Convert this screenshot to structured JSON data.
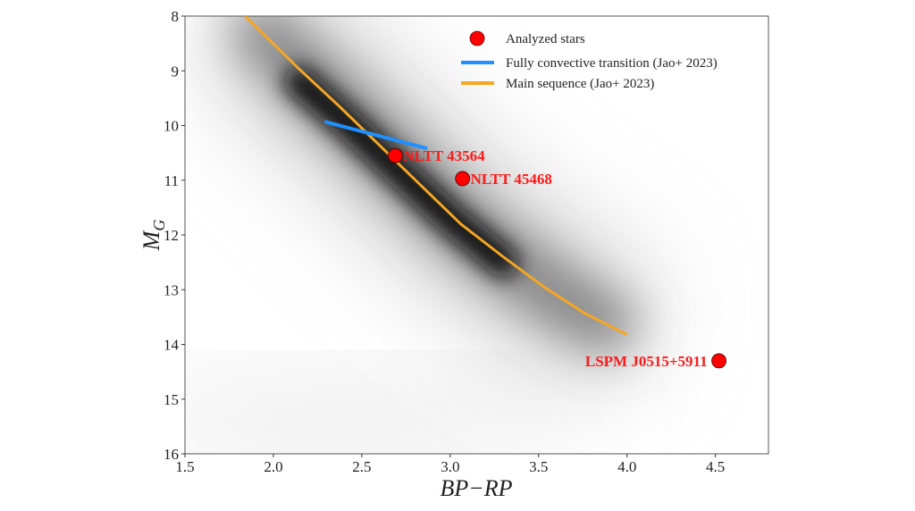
{
  "chart_data": {
    "type": "scatter",
    "title": "",
    "xlabel": "BP−RP",
    "ylabel": "M_G",
    "ylabel_main": "M",
    "ylabel_sub": "G",
    "xlim": [
      1.5,
      4.8
    ],
    "ylim": [
      16,
      8
    ],
    "y_inverted": true,
    "grid": false,
    "legend_placement": "top-right",
    "x_ticks": [
      "1.5",
      "2.0",
      "2.5",
      "3.0",
      "3.5",
      "4.0",
      "4.5"
    ],
    "y_ticks": [
      "8",
      "9",
      "10",
      "11",
      "12",
      "13",
      "14",
      "15",
      "16"
    ],
    "background": "grayscale density of stars concentrated along the main sequence",
    "series": [
      {
        "name": "Analyzed stars",
        "kind": "scatter",
        "color": "#ff0000",
        "points": [
          {
            "x": 2.69,
            "y": 10.55,
            "label": "NLTT 43564"
          },
          {
            "x": 3.07,
            "y": 10.97,
            "label": "NLTT 45468"
          },
          {
            "x": 4.52,
            "y": 14.3,
            "label": "LSPM J0515+5911"
          }
        ]
      },
      {
        "name": "Fully convective transition (Jao+ 2023)",
        "kind": "line",
        "color": "#1e90ff",
        "x": [
          2.29,
          2.87
        ],
        "y": [
          9.93,
          10.42
        ]
      },
      {
        "name": "Main sequence (Jao+ 2023)",
        "kind": "line",
        "color": "#f5a623",
        "x": [
          1.84,
          2.14,
          2.37,
          2.6,
          2.83,
          3.06,
          3.3,
          3.53,
          3.76,
          4.0
        ],
        "y": [
          8.0,
          8.95,
          9.64,
          10.36,
          11.08,
          11.8,
          12.4,
          12.95,
          13.43,
          13.82
        ]
      }
    ]
  }
}
